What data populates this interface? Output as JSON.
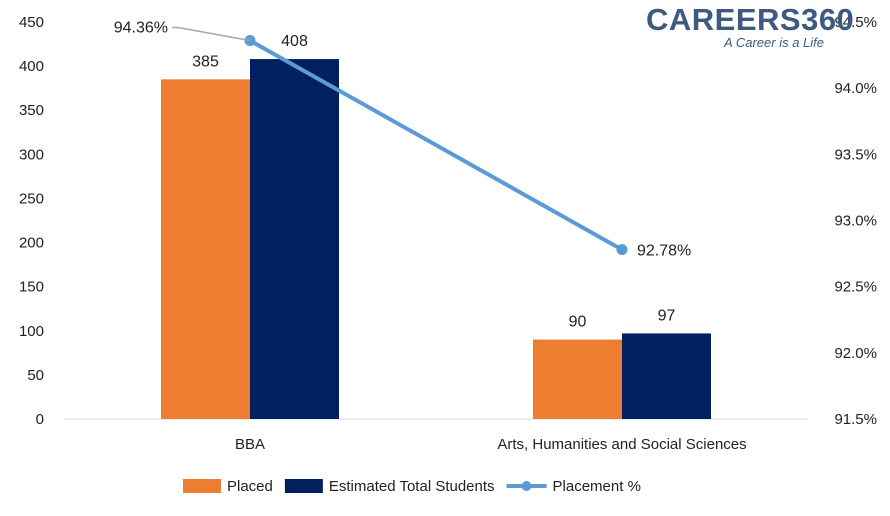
{
  "logo": {
    "name": "CAREERS360",
    "tagline": "A Career is a Life"
  },
  "chart_data": {
    "type": "bar",
    "categories": [
      "BBA",
      "Arts, Humanities and Social Sciences"
    ],
    "series": [
      {
        "name": "Placed",
        "type": "bar",
        "axis": "left",
        "color": "#ED7D31",
        "values": [
          385,
          90
        ],
        "labels": [
          "385",
          "90"
        ]
      },
      {
        "name": "Estimated Total Students",
        "type": "bar",
        "axis": "left",
        "color": "#002060",
        "values": [
          408,
          97
        ],
        "labels": [
          "408",
          "97"
        ]
      },
      {
        "name": "Placement %",
        "type": "line",
        "axis": "right",
        "color": "#5B9BD5",
        "values": [
          94.36,
          92.78
        ],
        "labels": [
          "94.36%",
          "92.78%"
        ]
      }
    ],
    "y_left": {
      "min": 0,
      "max": 450,
      "step": 50,
      "ticks": [
        "0",
        "50",
        "100",
        "150",
        "200",
        "250",
        "300",
        "350",
        "400",
        "450"
      ]
    },
    "y_right": {
      "min": 91.5,
      "max": 94.5,
      "step": 0.5,
      "ticks": [
        "91.5%",
        "92.0%",
        "92.5%",
        "93.0%",
        "93.5%",
        "94.0%",
        "94.5%"
      ]
    },
    "grid": false,
    "legend": "bottom"
  }
}
